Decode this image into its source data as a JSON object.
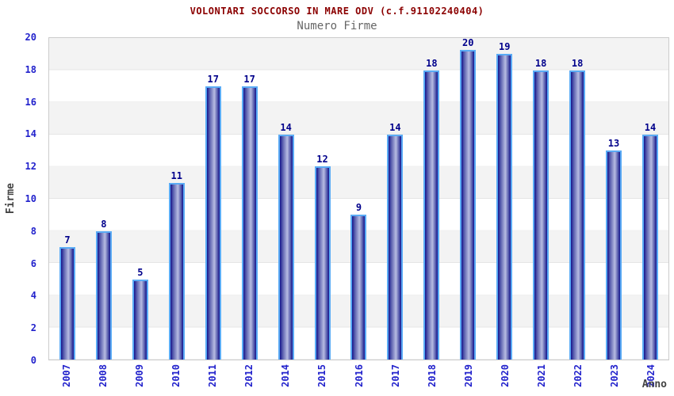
{
  "chart": {
    "title": "VOLONTARI SOCCORSO IN MARE ODV (c.f.91102240404)",
    "subtitle": "Numero Firme"
  },
  "chart_data": {
    "type": "bar",
    "title": "VOLONTARI SOCCORSO IN MARE ODV (c.f.91102240404)",
    "subtitle": "Numero Firme",
    "categories": [
      "2007",
      "2008",
      "2009",
      "2010",
      "2011",
      "2012",
      "2014",
      "2015",
      "2016",
      "2017",
      "2018",
      "2019",
      "2020",
      "2021",
      "2022",
      "2023",
      "2024"
    ],
    "values": [
      7,
      8,
      5,
      11,
      17,
      17,
      14,
      12,
      9,
      14,
      18,
      20,
      19,
      18,
      18,
      13,
      14
    ],
    "xlabel": "Anno",
    "ylabel": "Firme",
    "ylim": [
      0,
      20
    ],
    "yticks": [
      0,
      2,
      4,
      6,
      8,
      10,
      12,
      14,
      16,
      18,
      20
    ],
    "grid": "alternating-horizontal-bands-every-2-units",
    "legend": "none",
    "bar_value_labels": true,
    "x_tick_rotation_degrees": 90
  },
  "colors": {
    "title": "#8b0000",
    "subtitle": "#666666",
    "tick_label": "#2222cc",
    "value_label": "#00008b",
    "axis_title": "#444444",
    "bar_border": "#5aabf5",
    "bar_dark": "#14148c",
    "bar_mid": "#5a5fae",
    "bar_light": "#b7bce2",
    "band_gray": "#f3f3f3",
    "plot_border": "#cccccc"
  }
}
